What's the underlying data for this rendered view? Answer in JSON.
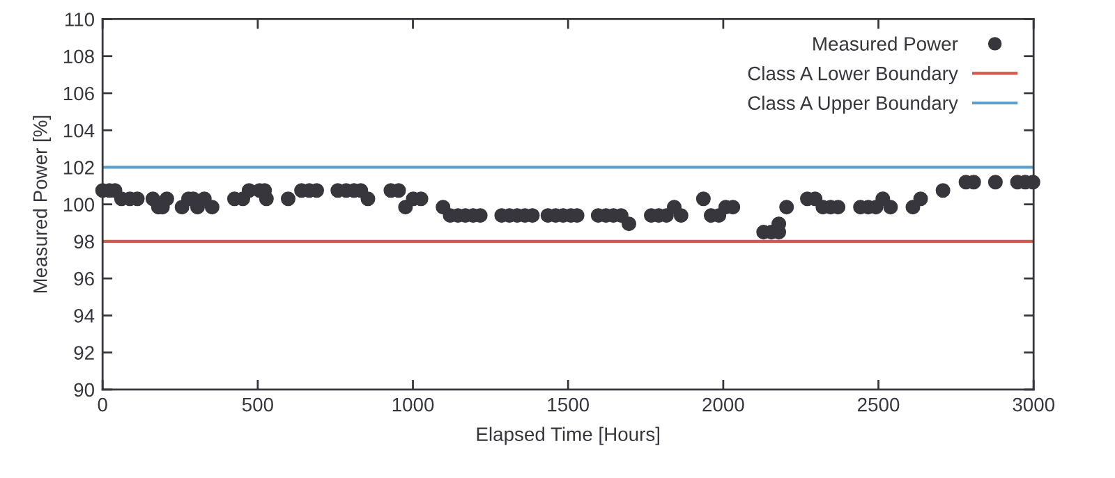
{
  "chart_data": {
    "type": "scatter",
    "xlabel": "Elapsed Time [Hours]",
    "ylabel": "Measured Power [%]",
    "xlim": [
      0,
      3000
    ],
    "xticks": [
      0,
      500,
      1000,
      1500,
      2000,
      2500,
      3000
    ],
    "ylim": [
      90,
      110
    ],
    "yticks": [
      90,
      92,
      94,
      96,
      98,
      100,
      102,
      104,
      106,
      108,
      110
    ],
    "grid": false,
    "legend": "top right",
    "marker": "circle",
    "series": [
      {
        "name": "Measured Power",
        "color": "#38363d",
        "x": [
          0,
          22,
          40,
          61,
          88,
          112,
          162,
          180,
          193,
          207,
          256,
          277,
          292,
          306,
          328,
          353,
          425,
          452,
          472,
          506,
          522,
          528,
          598,
          641,
          666,
          690,
          758,
          785,
          810,
          832,
          855,
          929,
          954,
          976,
          1001,
          1026,
          1097,
          1120,
          1145,
          1169,
          1194,
          1217,
          1286,
          1311,
          1336,
          1361,
          1385,
          1435,
          1460,
          1484,
          1509,
          1529,
          1597,
          1622,
          1646,
          1671,
          1696,
          1768,
          1792,
          1817,
          1842,
          1864,
          1936,
          1961,
          1986,
          2008,
          2031,
          2130,
          2155,
          2179,
          2179,
          2204,
          2271,
          2296,
          2321,
          2346,
          2370,
          2442,
          2467,
          2492,
          2514,
          2539,
          2611,
          2636,
          2708,
          2782,
          2807,
          2877,
          2948,
          2973,
          2998
        ],
        "values": [
          100.75,
          100.75,
          100.75,
          100.3,
          100.3,
          100.3,
          100.3,
          99.85,
          99.85,
          100.3,
          99.85,
          100.3,
          100.3,
          99.85,
          100.3,
          99.85,
          100.3,
          100.3,
          100.75,
          100.75,
          100.75,
          100.3,
          100.3,
          100.75,
          100.75,
          100.75,
          100.75,
          100.75,
          100.75,
          100.75,
          100.3,
          100.75,
          100.75,
          99.85,
          100.3,
          100.3,
          99.85,
          99.4,
          99.4,
          99.4,
          99.4,
          99.4,
          99.4,
          99.4,
          99.4,
          99.4,
          99.4,
          99.4,
          99.4,
          99.4,
          99.4,
          99.4,
          99.4,
          99.4,
          99.4,
          99.4,
          98.95,
          99.4,
          99.4,
          99.4,
          99.85,
          99.4,
          100.3,
          99.4,
          99.4,
          99.85,
          99.85,
          98.5,
          98.5,
          98.5,
          98.95,
          99.85,
          100.3,
          100.3,
          99.85,
          99.85,
          99.85,
          99.85,
          99.85,
          99.85,
          100.3,
          99.85,
          99.85,
          100.3,
          100.75,
          101.2,
          101.2,
          101.2,
          101.2,
          101.2,
          101.2
        ]
      }
    ],
    "ref_lines": [
      {
        "axis": "y",
        "value": 98,
        "label": "Class A Lower Boundary",
        "color": "#d0584e",
        "line_style": "solid"
      },
      {
        "axis": "y",
        "value": 102,
        "label": "Class A Upper Boundary",
        "color": "#5b9ec9",
        "line_style": "solid"
      }
    ]
  }
}
